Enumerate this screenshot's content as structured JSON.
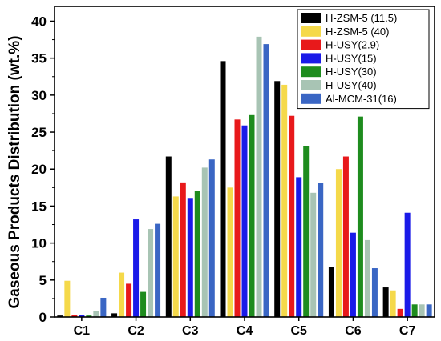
{
  "chart_data": {
    "type": "bar",
    "title": "",
    "xlabel": "",
    "ylabel": "Gaseous Products Distribution (wt.%)",
    "ylim": [
      0,
      42
    ],
    "yticks": [
      0,
      5,
      10,
      15,
      20,
      25,
      30,
      35,
      40
    ],
    "grid": false,
    "legend_position": "top-right",
    "categories": [
      "C1",
      "C2",
      "C3",
      "C4",
      "C5",
      "C6",
      "C7"
    ],
    "series": [
      {
        "name": "H-ZSM-5 (11.5)",
        "color": "#000000",
        "values": [
          0.2,
          0.5,
          21.7,
          34.6,
          31.9,
          6.8,
          4.0
        ]
      },
      {
        "name": "H-ZSM-5 (40)",
        "color": "#f5d94a",
        "values": [
          4.9,
          6.0,
          16.3,
          17.5,
          31.4,
          20.0,
          3.6
        ]
      },
      {
        "name": "H-USY(2.9)",
        "color": "#e8191b",
        "values": [
          0.3,
          4.5,
          18.2,
          26.7,
          27.2,
          21.7,
          1.1
        ]
      },
      {
        "name": "H-USY(15)",
        "color": "#1a1ae8",
        "values": [
          0.3,
          13.2,
          16.1,
          25.9,
          18.9,
          11.4,
          14.1
        ]
      },
      {
        "name": "H-USY(30)",
        "color": "#1e8c1e",
        "values": [
          0.2,
          3.4,
          17.0,
          27.3,
          23.1,
          27.1,
          1.7
        ]
      },
      {
        "name": "H-USY(40)",
        "color": "#a8c4b4",
        "values": [
          0.8,
          11.9,
          20.2,
          37.9,
          16.8,
          10.4,
          1.7
        ]
      },
      {
        "name": "Al-MCM-31(16)",
        "color": "#3a66c4",
        "values": [
          2.6,
          12.6,
          21.3,
          36.9,
          18.1,
          6.6,
          1.7
        ]
      }
    ]
  }
}
